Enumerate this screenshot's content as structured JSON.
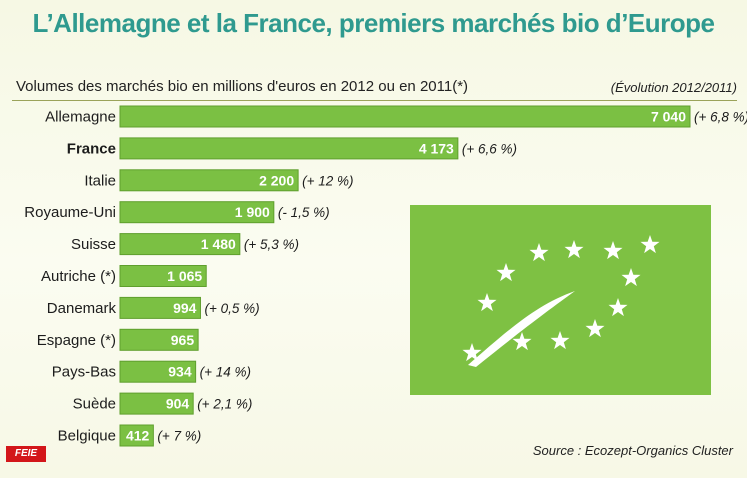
{
  "title": "L’Allemagne et la France, premiers marchés bio d’Europe",
  "subtitle": "Volumes des marchés bio en millions d'euros en 2012 ou en 2011(*)",
  "evolution_header": "(Évolution 2012/2011)",
  "source": "Source : Ecozept-Organics Cluster",
  "logo_text": "FEIE",
  "colors": {
    "bar": "#7bc043",
    "bar_border": "#5f9f2d",
    "title": "#2f9a8f",
    "eu_leaf_bg": "#7ec143",
    "eu_leaf_star": "#ffffff"
  },
  "eu_leaf_icon": "eu-organic-leaf-icon",
  "chart_data": {
    "type": "bar",
    "orientation": "horizontal",
    "categories": [
      "Allemagne",
      "France",
      "Italie",
      "Royaume-Uni",
      "Suisse",
      "Autriche (*)",
      "Danemark",
      "Espagne (*)",
      "Pays-Bas",
      "Suède",
      "Belgique"
    ],
    "values": [
      7040,
      4173,
      2200,
      1900,
      1480,
      1065,
      994,
      965,
      934,
      904,
      412
    ],
    "value_labels": [
      "7 040",
      "4 173",
      "2 200",
      "1 900",
      "1 480",
      "1 065",
      "994",
      "965",
      "934",
      "904",
      "412"
    ],
    "changes": [
      "(+ 6,8 %)",
      "(+ 6,6 %)",
      "(+ 12 %)",
      "(- 1,5 %)",
      "(+ 5,3 %)",
      "",
      "(+ 0,5 %)",
      "",
      "(+ 14 %)",
      "(+ 2,1 %)",
      "(+ 7 %)"
    ],
    "highlight": "France",
    "unit": "millions d'euros"
  }
}
